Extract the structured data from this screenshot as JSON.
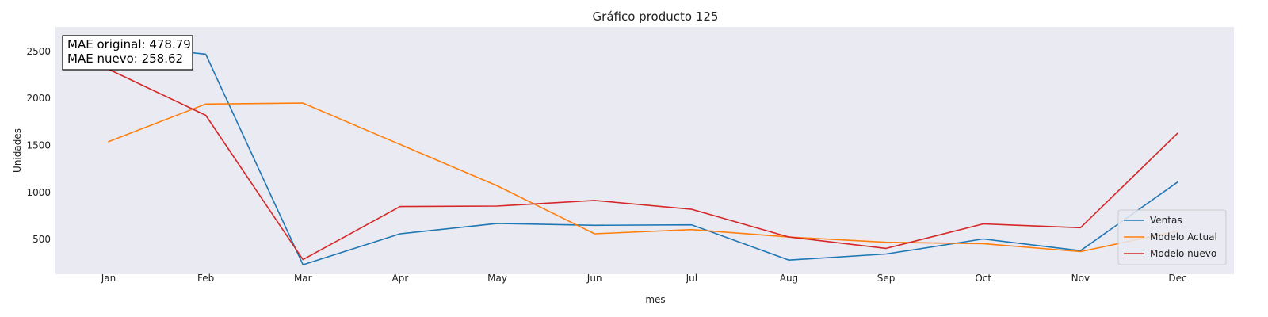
{
  "chart_data": {
    "type": "line",
    "title": "Gráfico producto 125",
    "xlabel": "mes",
    "ylabel": "Unidades",
    "categories": [
      "Jan",
      "Feb",
      "Mar",
      "Apr",
      "May",
      "Jun",
      "Jul",
      "Aug",
      "Sep",
      "Oct",
      "Nov",
      "Dec"
    ],
    "ylim": [
      130,
      2760
    ],
    "yticks": [
      500,
      1000,
      1500,
      2000,
      2500
    ],
    "grid": false,
    "legend": "lower right",
    "background_color": "#eaeaf2",
    "series": [
      {
        "name": "Ventas",
        "color": "#1f77b4",
        "values": [
          2580,
          2470,
          230,
          560,
          670,
          650,
          655,
          280,
          345,
          505,
          380,
          1110
        ]
      },
      {
        "name": "Modelo Actual",
        "color": "#ff7f0e",
        "values": [
          1540,
          1940,
          1950,
          1510,
          1070,
          560,
          605,
          525,
          470,
          455,
          370,
          590
        ]
      },
      {
        "name": "Modelo nuevo",
        "color": "#d62728",
        "values": [
          2310,
          1820,
          285,
          850,
          855,
          915,
          820,
          525,
          405,
          665,
          625,
          1630
        ]
      }
    ],
    "annotations": [
      "MAE original: 478.79",
      "MAE nuevo: 258.62"
    ]
  }
}
